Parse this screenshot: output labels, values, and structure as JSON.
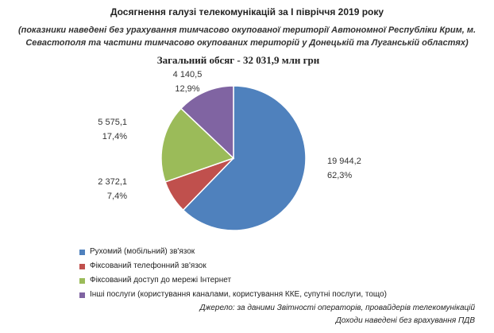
{
  "header": {
    "title": "Досягнення галузі телекомунікацій за І півріччя 2019 року",
    "subtitle_line1": "(показники наведені без урахування тимчасово окупованої території Автономної Республіки Крим, м.",
    "subtitle_line2": "Севастополя та частини тимчасово окупованих територій у Донецькій та Луганській областях)"
  },
  "chart_data": {
    "type": "pie",
    "title": "Загальний обсяг - 32 031,9 млн грн",
    "slices": [
      {
        "name": "Рухомий (мобільний) зв'язок",
        "value": 19944.2,
        "value_label": "19 944,2",
        "percent_label": "62,3%",
        "color": "#4F81BD"
      },
      {
        "name": "Фіксований телефонний зв'язок",
        "value": 2372.1,
        "value_label": "2 372,1",
        "percent_label": "7,4%",
        "color": "#C0504D"
      },
      {
        "name": "Фіксований доступ до мережі Інтернет",
        "value": 5575.1,
        "value_label": "5 575,1",
        "percent_label": "17,4%",
        "color": "#9BBB59"
      },
      {
        "name": "Інші послуги (користування каналами, користування ККЕ, супутні послуги, тощо)",
        "value": 4140.5,
        "value_label": "4 140,5",
        "percent_label": "12,9%",
        "color": "#8064A2"
      }
    ],
    "legend_position": "bottom"
  },
  "footer": {
    "source": "Джерело: за даними Звітності операторів, провайдерів телекомунікацій",
    "note": "Доходи наведені без врахування ПДВ"
  }
}
